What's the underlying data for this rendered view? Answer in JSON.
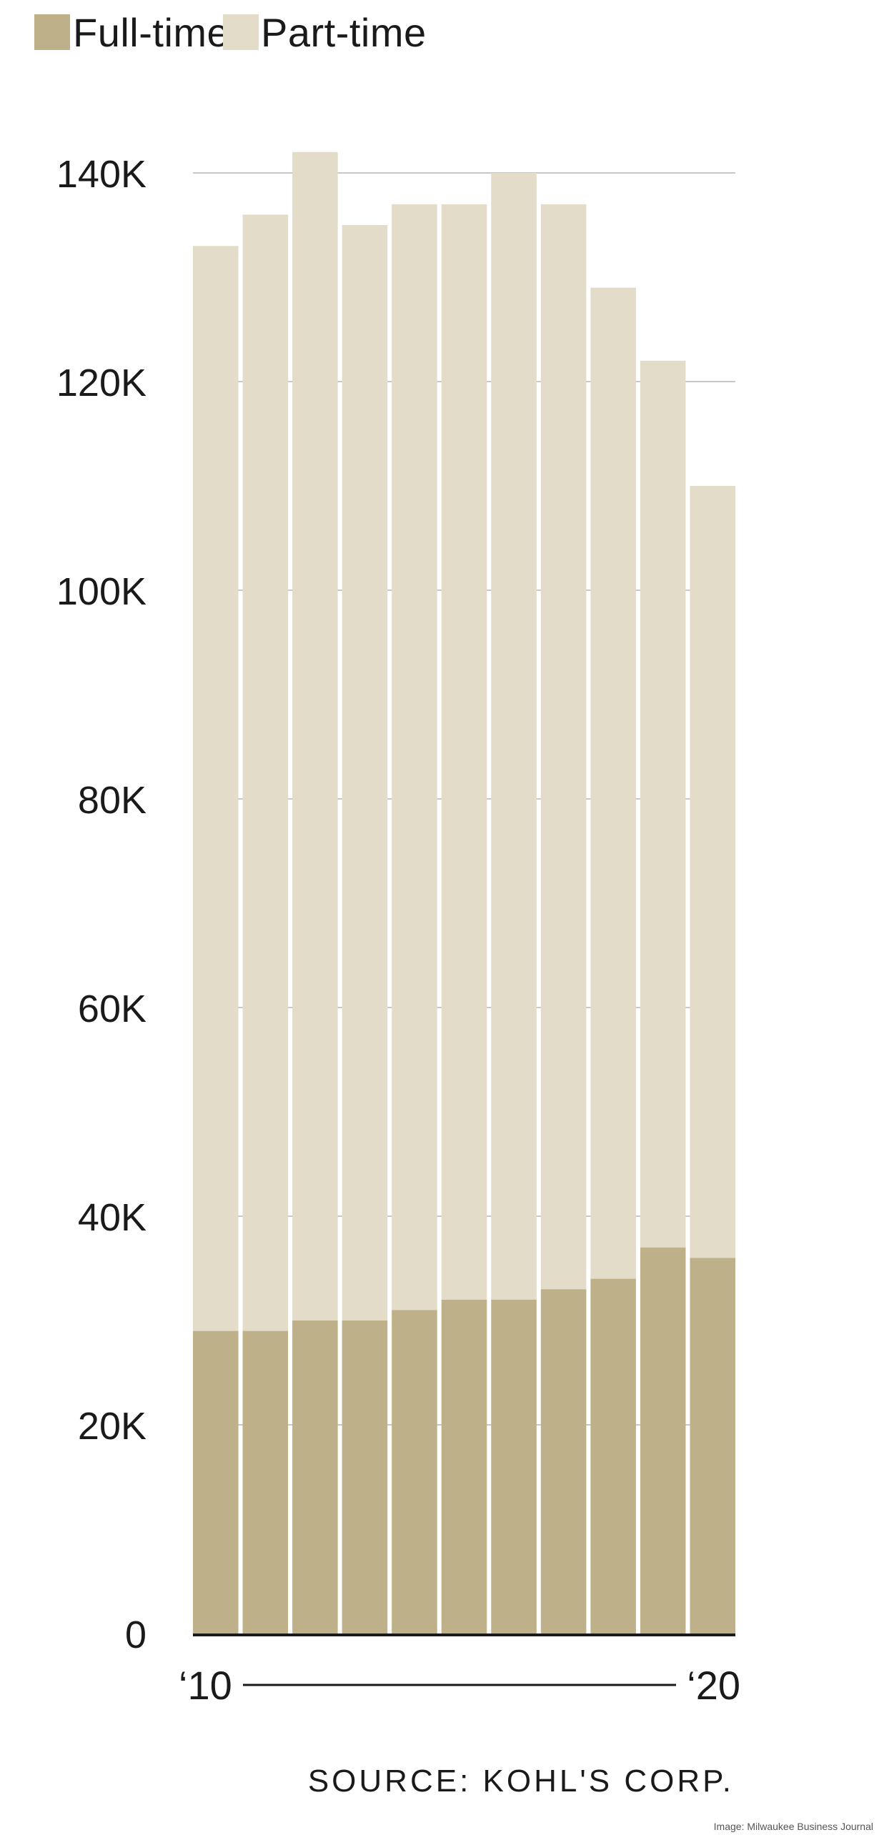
{
  "legend": {
    "full_time_label": "Full-time",
    "part_time_label": "Part-time"
  },
  "colors": {
    "full_time": "#beb088",
    "part_time": "#e3dcc8",
    "grid": "#c8c8c8",
    "axis": "#1a1a1a",
    "text": "#1a1a1a"
  },
  "x_axis": {
    "start_label": "‘10",
    "end_label": "‘20"
  },
  "source": "SOURCE: KOHL'S CORP.",
  "credit": "Image: Milwaukee Business Journal",
  "chart_data": {
    "type": "bar",
    "stacked": true,
    "categories": [
      "2010",
      "2011",
      "2012",
      "2013",
      "2014",
      "2015",
      "2016",
      "2017",
      "2018",
      "2019",
      "2020"
    ],
    "series": [
      {
        "name": "Full-time",
        "values": [
          29000,
          29000,
          30000,
          30000,
          31000,
          32000,
          32000,
          33000,
          34000,
          37000,
          36000
        ]
      },
      {
        "name": "Part-time",
        "values": [
          104000,
          107000,
          112000,
          105000,
          106000,
          105000,
          108000,
          104000,
          95000,
          85000,
          74000
        ]
      }
    ],
    "totals": [
      133000,
      136000,
      142000,
      135000,
      137000,
      137000,
      140000,
      137000,
      129000,
      122000,
      110000
    ],
    "y_ticks": [
      0,
      20000,
      40000,
      60000,
      80000,
      100000,
      120000,
      140000
    ],
    "y_tick_labels": [
      "0",
      "20K",
      "40K",
      "60K",
      "80K",
      "100K",
      "120K",
      "140K"
    ],
    "ylim": [
      0,
      140000
    ],
    "grid": true,
    "legend_position": "top-left"
  }
}
